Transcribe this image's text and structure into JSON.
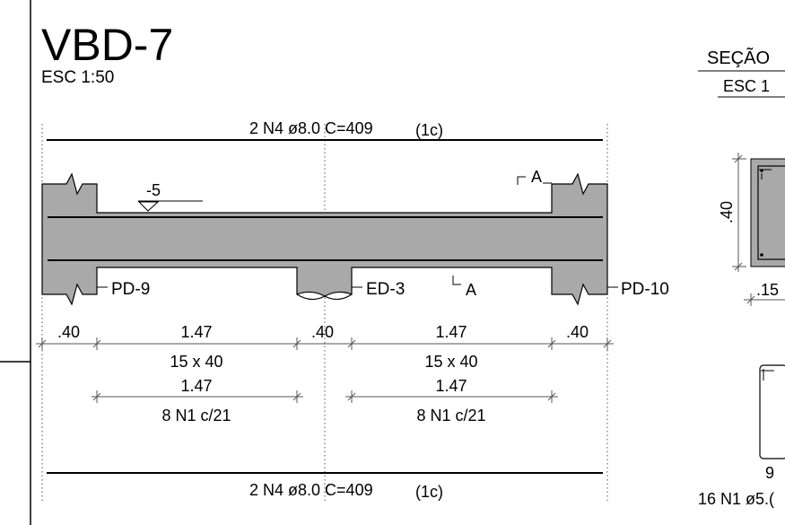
{
  "title": {
    "name": "VBD-7",
    "scale": "ESC 1:50"
  },
  "rebar": {
    "top": {
      "main": "2 N4 ø8.0 C=409",
      "suffix": "(1c)"
    },
    "bottom": {
      "main": "2 N4 ø8.0 C=409",
      "suffix": "(1c)"
    }
  },
  "supports": {
    "left": "PD-9",
    "middle": "ED-3",
    "right": "PD-10"
  },
  "level_mark": "-5",
  "section_cut": {
    "top": "A",
    "bottom": "A"
  },
  "dimensions": {
    "support_widths": [
      ".40",
      ".40",
      ".40"
    ],
    "spans": [
      {
        "length": "1.47",
        "section": "15 x 40",
        "stirrup_length": "1.47",
        "stirrups": "8 N1 c/21"
      },
      {
        "length": "1.47",
        "section": "15 x 40",
        "stirrup_length": "1.47",
        "stirrups": "8 N1 c/21"
      }
    ]
  },
  "section_view": {
    "title": "SEÇÃO",
    "scale": "ESC 1",
    "height_label": ".40",
    "width_label": ".15"
  },
  "stirrup_detail": {
    "dim": "9",
    "label": "16 N1 ø5.("
  },
  "colors": {
    "concrete": "#a9a9a9",
    "line": "#000000"
  }
}
